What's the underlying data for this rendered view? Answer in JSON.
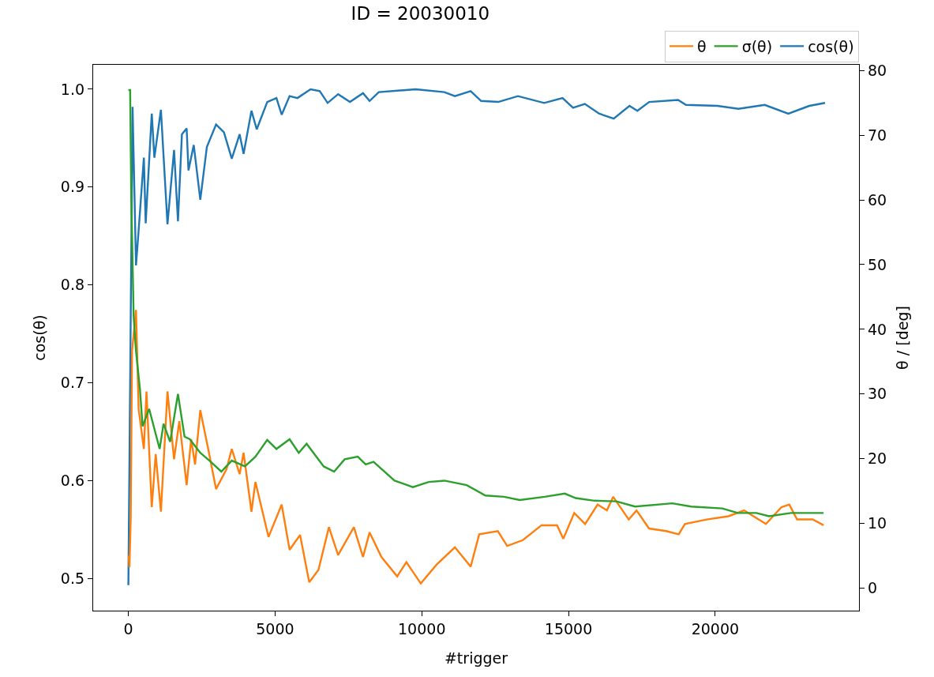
{
  "chart_data": {
    "type": "line",
    "title": "ID = 20030010",
    "xlabel": "#trigger",
    "ylabel": "cos(θ)",
    "y2label": "θ / [deg]",
    "xlim": [
      -1200,
      24900
    ],
    "xticks": [
      0,
      5000,
      10000,
      15000,
      20000
    ],
    "ylim": [
      0.467,
      1.025
    ],
    "yticks": [
      0.5,
      0.6,
      0.7,
      0.8,
      0.9,
      {
        "value": 1,
        "label": "1.0"
      }
    ],
    "y2lim": [
      -3.5,
      80.9
    ],
    "y2ticks": [
      0,
      10,
      20,
      30,
      40,
      50,
      60,
      70,
      80
    ],
    "grid": false,
    "legend": "top right",
    "marker": "none",
    "line_style": "solid",
    "series": [
      {
        "name": "θ",
        "color": "#ff7f0e",
        "axis": "y2",
        "x": [
          10,
          36,
          80,
          125,
          260,
          349,
          528,
          617,
          797,
          931,
          1109,
          1333,
          1557,
          1736,
          1986,
          2139,
          2273,
          2451,
          2720,
          2988,
          3346,
          3524,
          3792,
          3927,
          4195,
          4329,
          4777,
          5225,
          5494,
          5852,
          6164,
          6477,
          6835,
          7148,
          7685,
          7997,
          8221,
          8624,
          9161,
          9474,
          9966,
          10501,
          11128,
          11665,
          11956,
          12592,
          12909,
          13443,
          14079,
          14610,
          14822,
          15195,
          15566,
          15992,
          16309,
          16521,
          17053,
          17318,
          17745,
          18328,
          18755,
          18967,
          19710,
          20451,
          20985,
          21302,
          21729,
          22258,
          22524,
          22789,
          23320,
          23693
        ],
        "values": [
          5,
          3.2,
          10.6,
          36.6,
          43,
          27.7,
          21.5,
          30.4,
          12.5,
          20.7,
          11.8,
          30.4,
          19.9,
          25.8,
          15.9,
          23.0,
          19.1,
          27.5,
          21.5,
          15.3,
          18.4,
          21.5,
          17.6,
          20.9,
          11.8,
          16.4,
          7.9,
          12.9,
          5.9,
          8.2,
          0.9,
          2.8,
          9.4,
          5.1,
          9.4,
          4.8,
          8.6,
          4.8,
          1.8,
          4.0,
          0.7,
          3.6,
          6.3,
          3.3,
          8.3,
          8.8,
          6.5,
          7.4,
          9.7,
          9.7,
          7.6,
          11.6,
          9.9,
          12.9,
          12.0,
          14.1,
          10.6,
          12.0,
          9.2,
          8.8,
          8.3,
          9.9,
          10.6,
          11.1,
          12.0,
          11.1,
          9.9,
          12.5,
          12.9,
          10.6,
          10.6,
          9.7
        ]
      },
      {
        "name": "σ(θ)",
        "color": "#2ca02c",
        "axis": "y2",
        "x": [
          0,
          60,
          100,
          180,
          260,
          394,
          483,
          707,
          1065,
          1199,
          1423,
          1690,
          1914,
          2093,
          2451,
          2809,
          3167,
          3524,
          3972,
          4329,
          4732,
          5046,
          5494,
          5806,
          6075,
          6657,
          7013,
          7371,
          7819,
          8087,
          8355,
          9071,
          9697,
          10233,
          10770,
          11532,
          12168,
          12803,
          13338,
          14186,
          14876,
          15244,
          15885,
          16628,
          17267,
          18540,
          19178,
          20241,
          20772,
          21408,
          21833,
          22577,
          23693
        ],
        "values": [
          77,
          77,
          60,
          42,
          36.6,
          30.8,
          25.0,
          27.7,
          21.5,
          25.4,
          22.6,
          30.0,
          23.4,
          23.0,
          20.9,
          19.5,
          18.0,
          19.7,
          18.8,
          20.3,
          22.9,
          21.5,
          23.0,
          20.9,
          22.3,
          18.8,
          18.0,
          19.9,
          20.3,
          19.1,
          19.5,
          16.6,
          15.6,
          16.4,
          16.6,
          15.9,
          14.3,
          14.1,
          13.6,
          14.1,
          14.6,
          13.9,
          13.5,
          13.4,
          12.6,
          13.1,
          12.6,
          12.3,
          11.6,
          11.6,
          11.1,
          11.6,
          11.6
        ]
      },
      {
        "name": "cos(θ)",
        "color": "#1f77b4",
        "x": [
          0,
          143,
          260,
          350,
          528,
          590,
          797,
          886,
          1109,
          1333,
          1557,
          1690,
          1825,
          1986,
          2048,
          2228,
          2451,
          2675,
          2988,
          3256,
          3524,
          3792,
          3927,
          4195,
          4374,
          4732,
          5046,
          5225,
          5494,
          5762,
          6209,
          6522,
          6791,
          7148,
          7551,
          7997,
          8221,
          8535,
          9787,
          10770,
          11128,
          11665,
          12023,
          12606,
          13277,
          14170,
          14796,
          15154,
          15557,
          16049,
          16541,
          17078,
          17347,
          17749,
          18734,
          19002,
          20075,
          20791,
          21686,
          22491,
          23207,
          23744
        ],
        "values": [
          0.493,
          0.982,
          0.82,
          0.856,
          0.93,
          0.863,
          0.975,
          0.93,
          0.979,
          0.862,
          0.938,
          0.865,
          0.954,
          0.96,
          0.917,
          0.943,
          0.887,
          0.941,
          0.964,
          0.956,
          0.929,
          0.954,
          0.934,
          0.978,
          0.959,
          0.987,
          0.991,
          0.974,
          0.993,
          0.991,
          1.0,
          0.998,
          0.986,
          0.995,
          0.987,
          0.996,
          0.988,
          0.997,
          1.0,
          0.997,
          0.993,
          0.998,
          0.988,
          0.987,
          0.993,
          0.986,
          0.991,
          0.981,
          0.985,
          0.975,
          0.97,
          0.983,
          0.978,
          0.987,
          0.989,
          0.984,
          0.983,
          0.98,
          0.984,
          0.975,
          0.983,
          0.986
        ]
      }
    ]
  }
}
